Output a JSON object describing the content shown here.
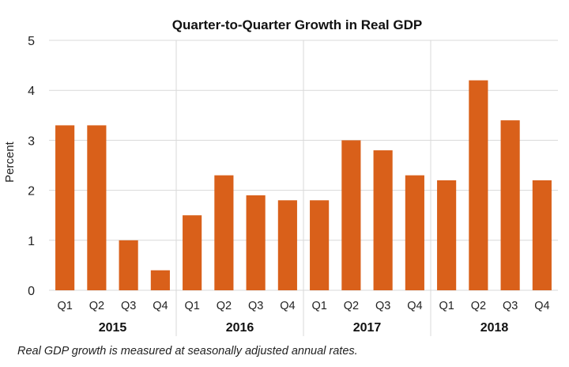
{
  "chart_data": {
    "type": "bar",
    "title": "Quarter-to-Quarter Growth in Real GDP",
    "ylabel": "Percent",
    "xlabel": "",
    "ylim": [
      0,
      5
    ],
    "yticks": [
      "0",
      "1",
      "2",
      "3",
      "4",
      "5"
    ],
    "grid": "horizontal",
    "groups": [
      {
        "label": "2015",
        "categories": [
          "Q1",
          "Q2",
          "Q3",
          "Q4"
        ],
        "values": [
          3.3,
          3.3,
          1.0,
          0.4
        ]
      },
      {
        "label": "2016",
        "categories": [
          "Q1",
          "Q2",
          "Q3",
          "Q4"
        ],
        "values": [
          1.5,
          2.3,
          1.9,
          1.8
        ]
      },
      {
        "label": "2017",
        "categories": [
          "Q1",
          "Q2",
          "Q3",
          "Q4"
        ],
        "values": [
          1.8,
          3.0,
          2.8,
          2.3
        ]
      },
      {
        "label": "2018",
        "categories": [
          "Q1",
          "Q2",
          "Q3",
          "Q4"
        ],
        "values": [
          2.2,
          4.2,
          3.4,
          2.2
        ]
      }
    ],
    "bar_color": "#D9601A",
    "grid_color": "#D9D9D9"
  },
  "footnote": "Real GDP growth is measured at seasonally adjusted annual rates."
}
